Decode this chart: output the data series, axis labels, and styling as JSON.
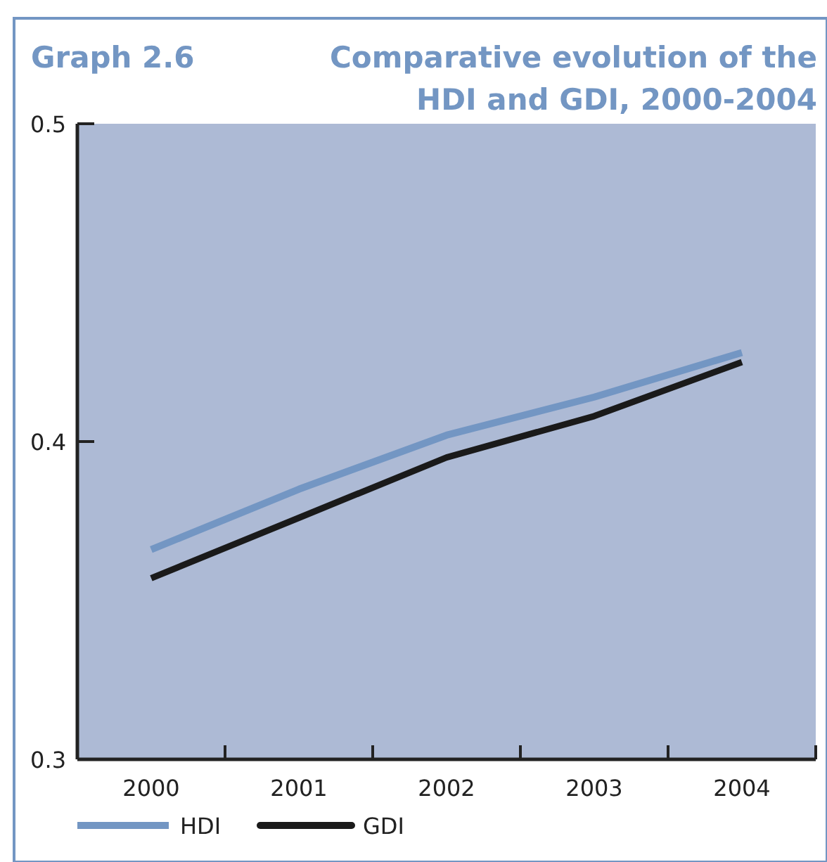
{
  "chart_data": {
    "type": "line",
    "title": "Comparative evolution of the HDI and GDI, 2000-2004",
    "annotations": [
      "Graph 2.6"
    ],
    "categories": [
      "2000",
      "2001",
      "2002",
      "2003",
      "2004"
    ],
    "series": [
      {
        "name": "HDI",
        "color": "#7396c3",
        "values": [
          0.366,
          0.385,
          0.402,
          0.414,
          0.428
        ]
      },
      {
        "name": "GDI",
        "color": "#1a1a1a",
        "values": [
          0.357,
          0.376,
          0.395,
          0.408,
          0.425
        ]
      }
    ],
    "ylim": [
      0.3,
      0.5
    ],
    "yticks": [
      0.3,
      0.4,
      0.5
    ],
    "grid": false,
    "legend": "bottom left",
    "marker": "none",
    "line_style": "solid"
  }
}
